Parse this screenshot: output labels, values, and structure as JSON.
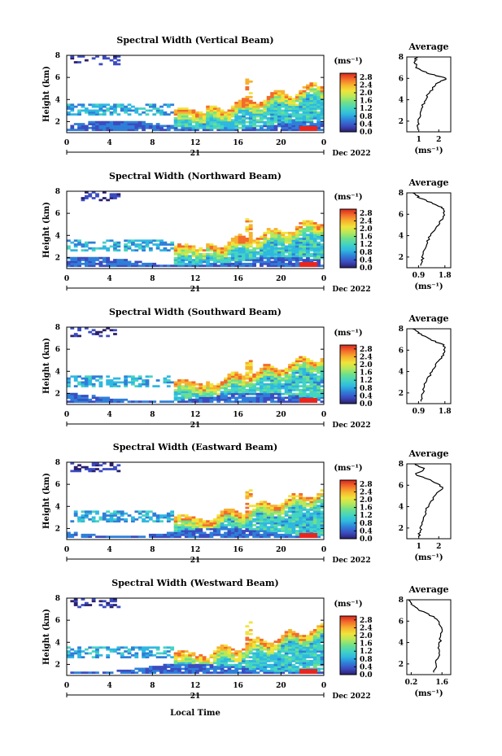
{
  "xlabel": "Local Time",
  "date_label": "Dec 2022",
  "day_label": "21",
  "ylabel": "Height (km)",
  "units": "(ms⁻¹)",
  "avg_title": "Average",
  "colorbar": {
    "ticks": [
      "2.8",
      "2.4",
      "2.0",
      "1.6",
      "1.2",
      "0.8",
      "0.4",
      "0.0"
    ],
    "min": 0.0,
    "max": 3.0,
    "colors": [
      "#2b1f6b",
      "#3b4cc0",
      "#2f7fd8",
      "#2fb8e0",
      "#44d4c2",
      "#6ee08a",
      "#b8e85a",
      "#f0e43a",
      "#f7b12e",
      "#f36b2a",
      "#d7261e"
    ]
  },
  "chart_data": [
    {
      "type": "heatmap",
      "title": "Spectral Width (Vertical Beam)",
      "xlabel": "Local Time",
      "ylabel": "Height (km)",
      "x_ticks": [
        "0",
        "4",
        "8",
        "12",
        "16",
        "20",
        "0"
      ],
      "y_ticks": [
        "2",
        "4",
        "6",
        "8"
      ],
      "xlim": [
        0,
        24
      ],
      "ylim": [
        1,
        8
      ],
      "avg_profile": {
        "xlabel": "(ms⁻¹)",
        "x_ticks": [
          "1",
          "2"
        ],
        "xlim": [
          0.4,
          2.6
        ],
        "ylim": [
          1,
          8
        ],
        "y_ticks": [
          "2",
          "4",
          "6",
          "8"
        ],
        "height": [
          1.2,
          2,
          3,
          4,
          4.8,
          5.5,
          6,
          6.5,
          7,
          7.6,
          8
        ],
        "value": [
          0.9,
          1.0,
          1.1,
          1.3,
          1.6,
          1.9,
          2.4,
          1.4,
          0.9,
          0.8,
          0.9
        ]
      }
    },
    {
      "type": "heatmap",
      "title": "Spectral Width (Northward Beam)",
      "xlabel": "Local Time",
      "ylabel": "Height (km)",
      "x_ticks": [
        "0",
        "4",
        "8",
        "12",
        "16",
        "20",
        "0"
      ],
      "y_ticks": [
        "2",
        "4",
        "6",
        "8"
      ],
      "xlim": [
        0,
        24
      ],
      "ylim": [
        1,
        8
      ],
      "avg_profile": {
        "xlabel": "(ms⁻¹)",
        "x_ticks": [
          "0.9",
          "1.8"
        ],
        "xlim": [
          0.5,
          2.0
        ],
        "ylim": [
          1,
          8
        ],
        "y_ticks": [
          "2",
          "4",
          "6",
          "8"
        ],
        "height": [
          1.2,
          2,
          3,
          4,
          5,
          5.8,
          6.5,
          7,
          7.6,
          8
        ],
        "value": [
          1.0,
          1.05,
          1.15,
          1.3,
          1.55,
          1.75,
          1.8,
          1.4,
          0.9,
          0.7
        ]
      }
    },
    {
      "type": "heatmap",
      "title": "Spectral Width (Southward Beam)",
      "xlabel": "Local Time",
      "ylabel": "Height (km)",
      "x_ticks": [
        "0",
        "4",
        "8",
        "12",
        "16",
        "20",
        "0"
      ],
      "y_ticks": [
        "2",
        "4",
        "6",
        "8"
      ],
      "xlim": [
        0,
        24
      ],
      "ylim": [
        1,
        8
      ],
      "avg_profile": {
        "xlabel": "",
        "x_ticks": [
          "0.9",
          "1.8"
        ],
        "xlim": [
          0.5,
          2.0
        ],
        "ylim": [
          1,
          8
        ],
        "y_ticks": [
          "2",
          "4",
          "6",
          "8"
        ],
        "height": [
          1.2,
          2,
          3,
          4,
          5,
          5.8,
          6.5,
          7,
          7.6,
          8
        ],
        "value": [
          1.0,
          1.05,
          1.15,
          1.35,
          1.6,
          1.8,
          1.75,
          1.3,
          0.9,
          0.7
        ]
      }
    },
    {
      "type": "heatmap",
      "title": "Spectral Width (Eastward Beam)",
      "xlabel": "Local Time",
      "ylabel": "Height (km)",
      "x_ticks": [
        "0",
        "4",
        "8",
        "12",
        "16",
        "20",
        "0"
      ],
      "y_ticks": [
        "2",
        "4",
        "6",
        "8"
      ],
      "xlim": [
        0,
        24
      ],
      "ylim": [
        1,
        8
      ],
      "avg_profile": {
        "xlabel": "(ms⁻¹)",
        "x_ticks": [
          "1",
          "2"
        ],
        "xlim": [
          0.4,
          2.6
        ],
        "ylim": [
          1,
          8
        ],
        "y_ticks": [
          "2",
          "4",
          "6",
          "8"
        ],
        "height": [
          1.2,
          2,
          3,
          4,
          5,
          5.8,
          6.5,
          7,
          7.5,
          8
        ],
        "value": [
          1.0,
          1.1,
          1.25,
          1.45,
          1.8,
          2.2,
          1.6,
          0.8,
          1.3,
          0.8
        ]
      }
    },
    {
      "type": "heatmap",
      "title": "Spectral Width (Westward Beam)",
      "xlabel": "Local Time",
      "ylabel": "Height (km)",
      "x_ticks": [
        "0",
        "4",
        "8",
        "12",
        "16",
        "20",
        "0"
      ],
      "y_ticks": [
        "2",
        "4",
        "6",
        "8"
      ],
      "xlim": [
        0,
        24
      ],
      "ylim": [
        1,
        8
      ],
      "avg_profile": {
        "xlabel": "(ms⁻¹)",
        "x_ticks": [
          "0.2",
          "1.6"
        ],
        "xlim": [
          0.0,
          2.0
        ],
        "ylim": [
          1,
          8
        ],
        "y_ticks": [
          "2",
          "4",
          "6",
          "8"
        ],
        "height": [
          1.2,
          2,
          3,
          4,
          5,
          5.6,
          6.3,
          7,
          7.6,
          8
        ],
        "value": [
          1.2,
          1.35,
          1.45,
          1.5,
          1.6,
          1.55,
          1.3,
          0.6,
          0.2,
          0.1
        ]
      }
    }
  ]
}
